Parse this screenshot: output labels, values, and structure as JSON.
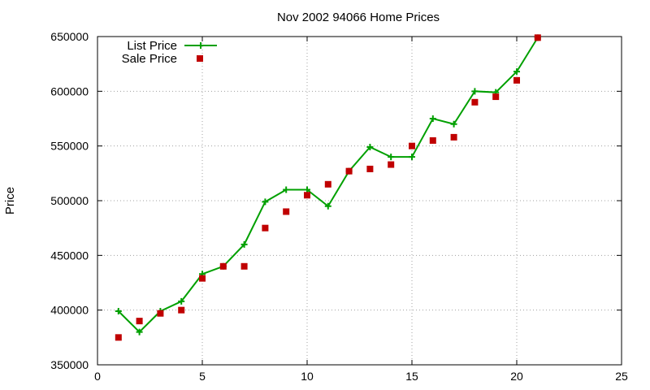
{
  "chart_data": {
    "type": "line",
    "title": "Nov 2002 94066 Home Prices",
    "xlabel": "",
    "ylabel": "Price",
    "xlim": [
      0,
      25
    ],
    "ylim": [
      350000,
      650000
    ],
    "xticks": [
      0,
      5,
      10,
      15,
      20,
      25
    ],
    "yticks": [
      350000,
      400000,
      450000,
      500000,
      550000,
      600000,
      650000
    ],
    "grid": true,
    "legend_position": "top-left",
    "series": [
      {
        "name": "List Price",
        "style": "line-points",
        "marker": "plus",
        "color": "#00a000",
        "x": [
          1,
          2,
          3,
          4,
          5,
          6,
          7,
          8,
          9,
          10,
          11,
          12,
          13,
          14,
          15,
          16,
          17,
          18,
          19,
          20,
          21
        ],
        "values": [
          399000,
          380000,
          399000,
          408000,
          433000,
          440000,
          460000,
          499000,
          510000,
          510000,
          495000,
          527000,
          549000,
          540000,
          540000,
          575000,
          570000,
          600000,
          599000,
          618000,
          649000
        ]
      },
      {
        "name": "Sale Price",
        "style": "points",
        "marker": "square",
        "color": "#c00000",
        "x": [
          1,
          2,
          3,
          4,
          5,
          6,
          7,
          8,
          9,
          10,
          11,
          12,
          13,
          14,
          15,
          16,
          17,
          18,
          19,
          20,
          21
        ],
        "values": [
          375000,
          390000,
          397000,
          400000,
          429000,
          440000,
          440000,
          475000,
          490000,
          505000,
          515000,
          527000,
          529000,
          533000,
          550000,
          555000,
          558000,
          590000,
          595000,
          610000,
          649000
        ]
      }
    ]
  }
}
